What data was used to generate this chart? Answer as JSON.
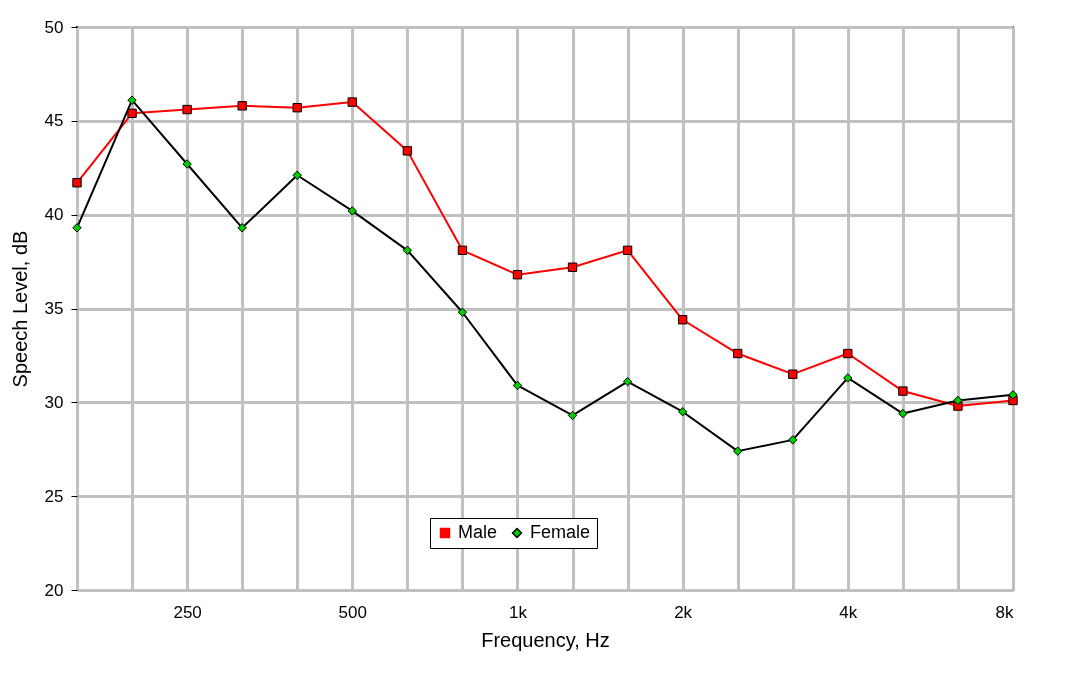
{
  "chart_data": {
    "type": "line",
    "xlabel": "Frequency, Hz",
    "ylabel": "Speech Level, dB",
    "categories": [
      null,
      null,
      "250",
      null,
      null,
      "500",
      null,
      null,
      "1k",
      null,
      null,
      "2k",
      null,
      null,
      "4k",
      null,
      null,
      "8k"
    ],
    "ylim": [
      20,
      50
    ],
    "yticks": [
      20,
      25,
      30,
      35,
      40,
      45,
      50
    ],
    "grid": true,
    "legend": "bottom",
    "series": [
      {
        "name": "Male",
        "color": "#ff0000",
        "marker": "square",
        "values": [
          41.7,
          45.4,
          45.6,
          45.8,
          45.7,
          46.0,
          43.4,
          38.1,
          36.8,
          37.2,
          38.1,
          34.4,
          32.6,
          31.5,
          32.6,
          30.6,
          29.8,
          30.1
        ]
      },
      {
        "name": "Female",
        "color": "#000000",
        "marker": "diamond",
        "values": [
          39.3,
          46.1,
          42.7,
          39.3,
          42.1,
          40.2,
          38.1,
          34.8,
          30.9,
          29.3,
          31.1,
          29.5,
          27.4,
          28.0,
          31.3,
          29.4,
          30.1,
          30.4
        ]
      }
    ]
  }
}
